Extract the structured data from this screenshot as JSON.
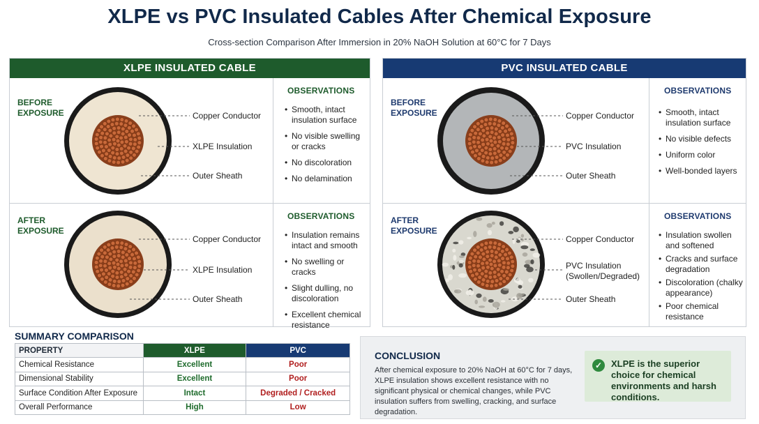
{
  "title": "XLPE vs PVC Insulated Cables After Chemical Exposure",
  "subtitle": "Cross-section Comparison After Immersion in 20% NaOH Solution at 60°C for 7 Days",
  "colors": {
    "xlpe_accent": "#1e5b2c",
    "pvc_accent": "#173a73",
    "good_value": "#1e6b2c",
    "bad_value": "#b01e1e",
    "copper": "#c8693a",
    "xlpe_insulation": "#efe5d2",
    "pvc_insulation": "#b3b6b8",
    "sheath": "#1a1a1a"
  },
  "xlpe_panel": {
    "header": "XLPE INSULATED CABLE",
    "before": {
      "stage": "BEFORE EXPOSURE",
      "callouts": [
        "Copper Conductor",
        "XLPE Insulation",
        "Outer Sheath"
      ],
      "obs_title": "OBSERVATIONS",
      "observations": [
        "Smooth, intact insulation surface",
        "No visible swelling or cracks",
        "No discoloration",
        "No delamination"
      ]
    },
    "after": {
      "stage": "AFTER EXPOSURE",
      "callouts": [
        "Copper Conductor",
        "XLPE Insulation",
        "Outer Sheath"
      ],
      "obs_title": "OBSERVATIONS",
      "observations": [
        "Insulation remains intact and smooth",
        "No swelling or cracks",
        "Slight dulling, no discoloration",
        "Excellent chemical resistance"
      ]
    }
  },
  "pvc_panel": {
    "header": "PVC INSULATED CABLE",
    "before": {
      "stage": "BEFORE EXPOSURE",
      "callouts": [
        "Copper Conductor",
        "PVC Insulation",
        "Outer Sheath"
      ],
      "obs_title": "OBSERVATIONS",
      "observations": [
        "Smooth, intact insulation surface",
        "No visible defects",
        "Uniform color",
        "Well-bonded layers"
      ]
    },
    "after": {
      "stage": "AFTER EXPOSURE",
      "callouts": [
        "Copper Conductor",
        "PVC Insulation (Swollen/Degraded)",
        "Outer Sheath"
      ],
      "obs_title": "OBSERVATIONS",
      "observations": [
        "Insulation swollen and softened",
        "Cracks and surface degradation",
        "Discoloration (chalky appearance)",
        "Poor chemical resistance"
      ]
    }
  },
  "summary": {
    "title": "SUMMARY COMPARISON",
    "headers": [
      "PROPERTY",
      "XLPE",
      "PVC"
    ],
    "rows": [
      {
        "property": "Chemical Resistance",
        "xlpe": "Excellent",
        "pvc": "Poor"
      },
      {
        "property": "Dimensional Stability",
        "xlpe": "Excellent",
        "pvc": "Poor"
      },
      {
        "property": "Surface Condition After Exposure",
        "xlpe": "Intact",
        "pvc": "Degraded / Cracked"
      },
      {
        "property": "Overall Performance",
        "xlpe": "High",
        "pvc": "Low"
      }
    ]
  },
  "conclusion": {
    "title": "CONCLUSION",
    "text": "After chemical exposure to 20% NaOH at 60°C for 7 days, XLPE insulation shows excellent resistance with no significant physical or chemical changes, while PVC insulation suffers from swelling, cracking, and surface degradation.",
    "verdict": "XLPE is the superior choice for chemical environments and harsh conditions.",
    "icon": "check-circle-icon"
  }
}
